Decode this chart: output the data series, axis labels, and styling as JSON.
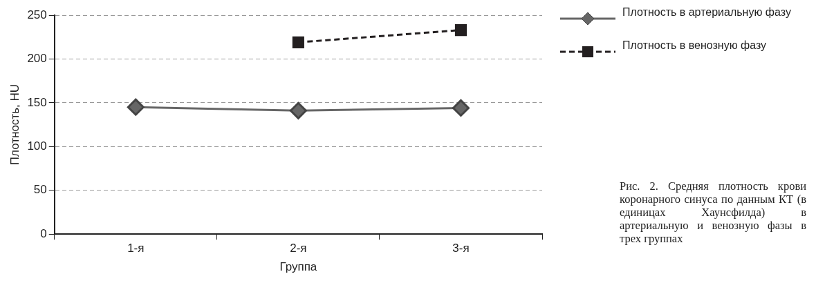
{
  "chart_data": {
    "type": "line",
    "xlabel": "Группа",
    "ylabel": "Плотность, HU",
    "categories": [
      "1-я",
      "2-я",
      "3-я"
    ],
    "series": [
      {
        "name": "Плотность в артериальную фазу",
        "color": "#666666",
        "values": [
          145,
          141,
          144
        ],
        "marker": "diamond",
        "line_style": "solid"
      },
      {
        "name": "Плотность в венозную фазу",
        "color": "#231f20",
        "values": [
          null,
          219,
          233
        ],
        "marker": "square",
        "line_style": "dashed"
      }
    ],
    "ylim": [
      0,
      250
    ],
    "yticks": [
      0,
      50,
      100,
      150,
      200,
      250
    ],
    "grid": "y",
    "legend": "right",
    "annotations": [
      "Рис. 2. Средняя плотность крови коронарного синуса по данным КТ (в единицах Хаунсфилда) в артериальную и венозную фазы в трех группах"
    ]
  }
}
